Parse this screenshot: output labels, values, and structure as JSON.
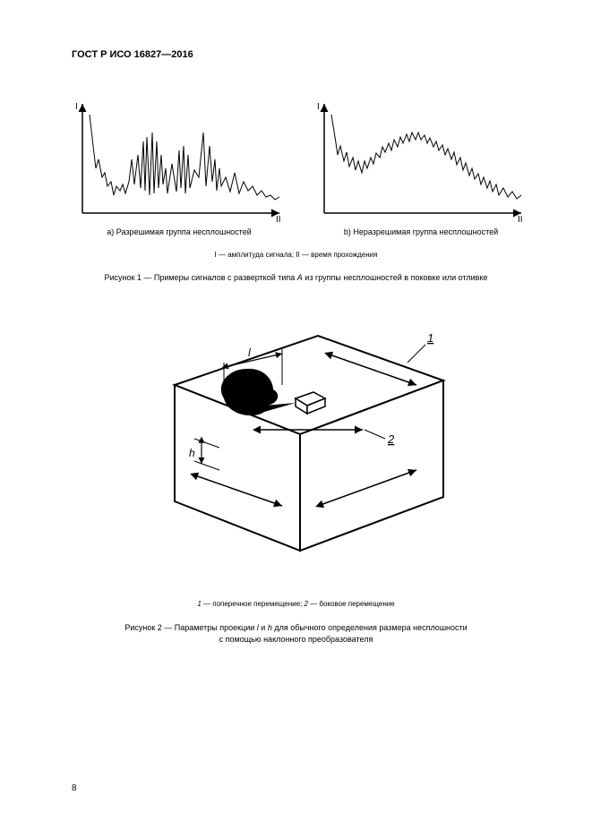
{
  "document": {
    "standard_code": "ГОСТ Р ИСО 16827—2016",
    "page_number": "8"
  },
  "figure1": {
    "axis_y_label": "I",
    "axis_x_label": "II",
    "chart_a": {
      "label": "a) Разрешимая группа несплошностей",
      "points": [
        [
          8,
          10
        ],
        [
          12,
          45
        ],
        [
          15,
          70
        ],
        [
          18,
          60
        ],
        [
          22,
          80
        ],
        [
          25,
          75
        ],
        [
          28,
          90
        ],
        [
          32,
          85
        ],
        [
          35,
          100
        ],
        [
          38,
          90
        ],
        [
          42,
          95
        ],
        [
          45,
          88
        ],
        [
          48,
          98
        ],
        [
          52,
          85
        ],
        [
          55,
          60
        ],
        [
          58,
          88
        ],
        [
          62,
          55
        ],
        [
          65,
          92
        ],
        [
          68,
          40
        ],
        [
          70,
          95
        ],
        [
          72,
          35
        ],
        [
          75,
          100
        ],
        [
          78,
          30
        ],
        [
          80,
          98
        ],
        [
          83,
          40
        ],
        [
          85,
          92
        ],
        [
          88,
          55
        ],
        [
          90,
          88
        ],
        [
          93,
          70
        ],
        [
          95,
          98
        ],
        [
          100,
          65
        ],
        [
          105,
          96
        ],
        [
          108,
          50
        ],
        [
          110,
          92
        ],
        [
          113,
          45
        ],
        [
          115,
          98
        ],
        [
          118,
          55
        ],
        [
          120,
          92
        ],
        [
          125,
          72
        ],
        [
          130,
          80
        ],
        [
          135,
          30
        ],
        [
          138,
          90
        ],
        [
          142,
          45
        ],
        [
          145,
          85
        ],
        [
          148,
          60
        ],
        [
          150,
          95
        ],
        [
          153,
          70
        ],
        [
          155,
          90
        ],
        [
          160,
          80
        ],
        [
          165,
          96
        ],
        [
          170,
          75
        ],
        [
          175,
          98
        ],
        [
          180,
          85
        ],
        [
          185,
          95
        ],
        [
          190,
          90
        ],
        [
          195,
          100
        ],
        [
          200,
          95
        ],
        [
          205,
          102
        ],
        [
          210,
          100
        ],
        [
          215,
          105
        ],
        [
          220,
          102
        ]
      ]
    },
    "chart_b": {
      "label": "b) Неразрешимая группа несплошностей",
      "points": [
        [
          8,
          10
        ],
        [
          12,
          35
        ],
        [
          15,
          55
        ],
        [
          18,
          45
        ],
        [
          22,
          62
        ],
        [
          25,
          52
        ],
        [
          28,
          68
        ],
        [
          32,
          58
        ],
        [
          35,
          72
        ],
        [
          38,
          62
        ],
        [
          42,
          75
        ],
        [
          45,
          62
        ],
        [
          48,
          70
        ],
        [
          52,
          58
        ],
        [
          55,
          65
        ],
        [
          58,
          53
        ],
        [
          62,
          58
        ],
        [
          65,
          46
        ],
        [
          68,
          52
        ],
        [
          72,
          42
        ],
        [
          75,
          50
        ],
        [
          78,
          38
        ],
        [
          82,
          46
        ],
        [
          85,
          35
        ],
        [
          88,
          42
        ],
        [
          92,
          32
        ],
        [
          95,
          40
        ],
        [
          98,
          30
        ],
        [
          102,
          38
        ],
        [
          105,
          30
        ],
        [
          108,
          38
        ],
        [
          112,
          33
        ],
        [
          115,
          42
        ],
        [
          118,
          36
        ],
        [
          122,
          46
        ],
        [
          125,
          40
        ],
        [
          128,
          50
        ],
        [
          132,
          44
        ],
        [
          135,
          55
        ],
        [
          138,
          48
        ],
        [
          142,
          60
        ],
        [
          145,
          52
        ],
        [
          148,
          66
        ],
        [
          152,
          58
        ],
        [
          155,
          72
        ],
        [
          158,
          64
        ],
        [
          162,
          78
        ],
        [
          165,
          70
        ],
        [
          168,
          82
        ],
        [
          172,
          76
        ],
        [
          175,
          88
        ],
        [
          178,
          80
        ],
        [
          182,
          92
        ],
        [
          185,
          84
        ],
        [
          188,
          96
        ],
        [
          192,
          88
        ],
        [
          195,
          100
        ],
        [
          200,
          92
        ],
        [
          205,
          102
        ],
        [
          210,
          96
        ],
        [
          215,
          104
        ],
        [
          220,
          100
        ]
      ]
    },
    "legend": "I — амплитуда сигнала; II — время прохождения",
    "caption_prefix": "Рисунок 1 — Примеры сигналов с разверткой типа ",
    "caption_italic1": "A",
    "caption_suffix": " из группы несплошностей в поковке или отливке"
  },
  "figure2": {
    "label_l": "l",
    "label_h": "h",
    "label_1": "1",
    "label_2": "2",
    "legend_prefix": "1",
    "legend_mid1": " — поперечное перемещение; ",
    "legend_mid2": "2",
    "legend_end": " — боковое перемещение",
    "caption_prefix": "Рисунок 2 — Параметры проекции ",
    "caption_l": "l",
    "caption_and": " и ",
    "caption_h": "h",
    "caption_end1": " для обычного определения размера несплошности",
    "caption_end2": "с помощью наклонного преобразователя"
  },
  "style": {
    "stroke": "#000000",
    "fill_bg": "#ffffff"
  }
}
